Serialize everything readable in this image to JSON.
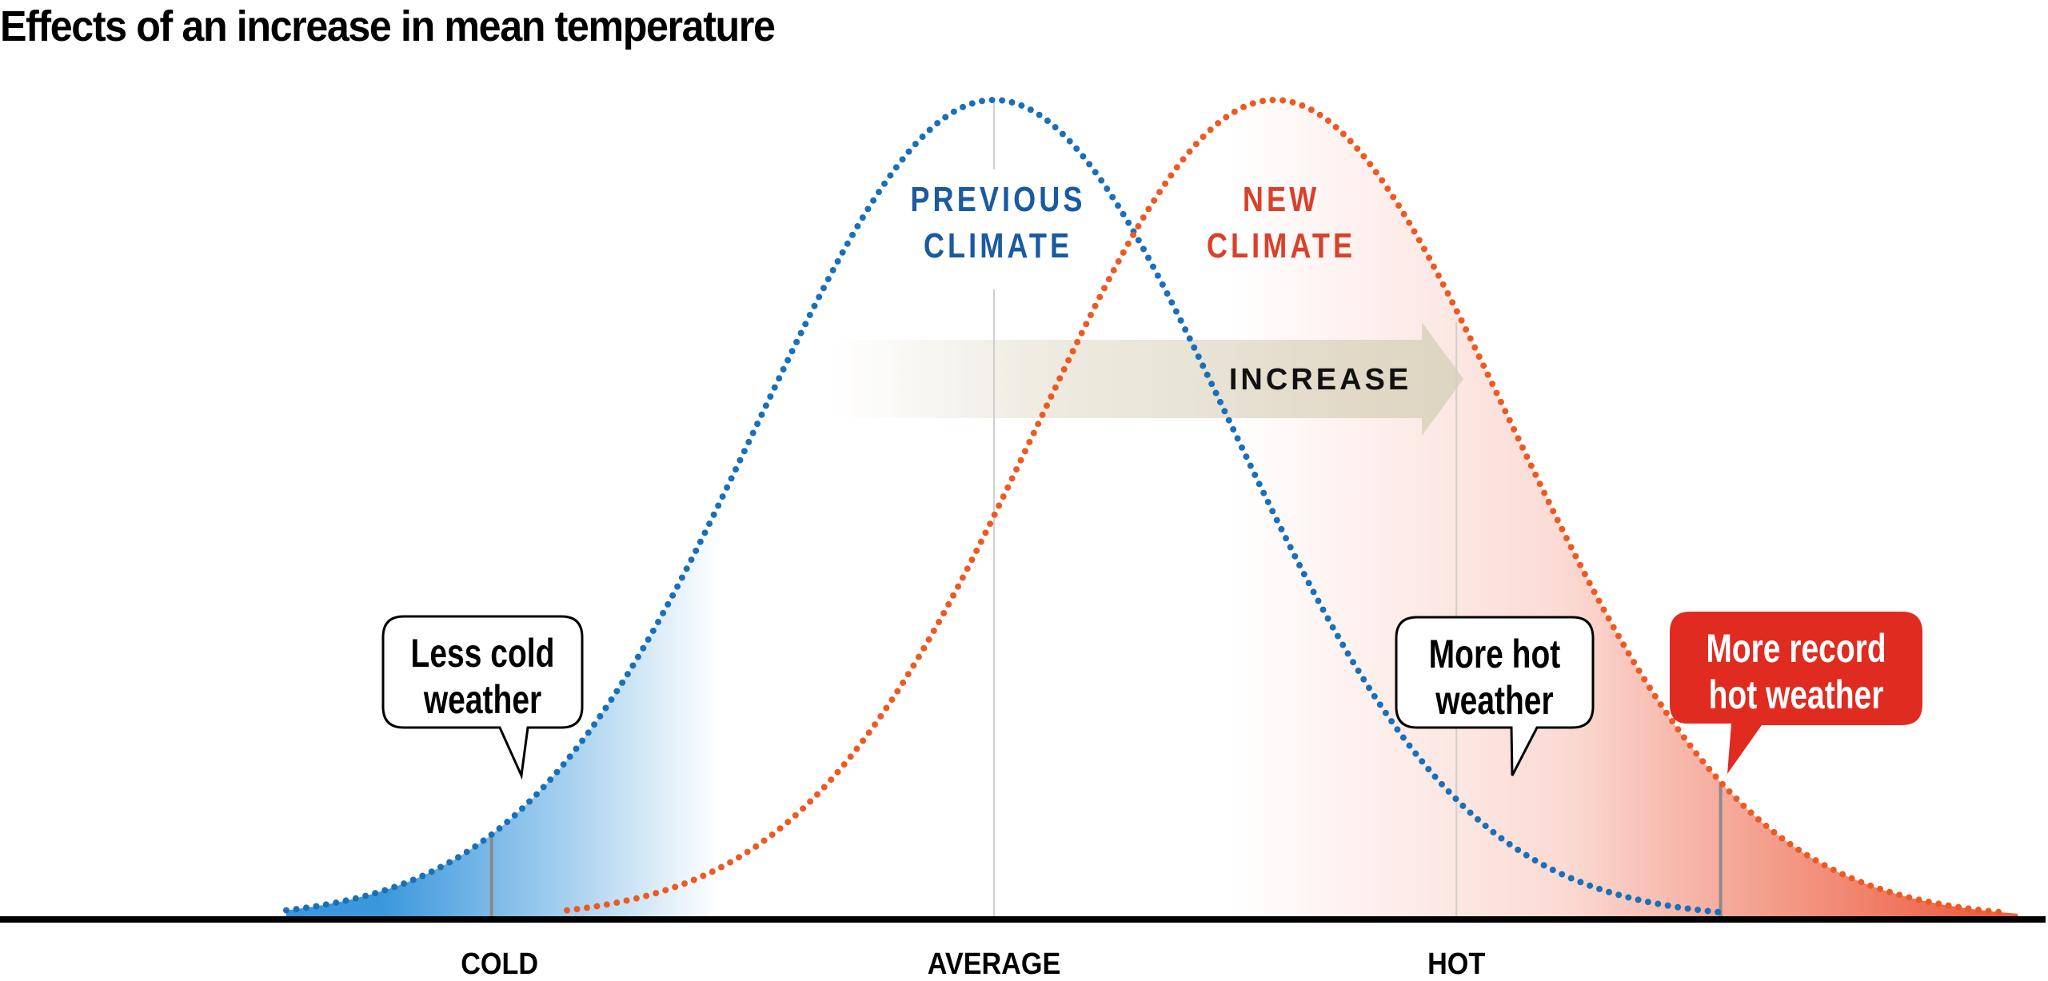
{
  "chart_data": {
    "type": "line",
    "title": "Effects of an increase in mean temperature",
    "xlabel": "",
    "ylabel": "",
    "x_units": "standard deviations of the previous climate (average = 0)",
    "xlim": [
      -3.0,
      4.35
    ],
    "tick_labels": [
      {
        "label": "COLD",
        "x": -2.13
      },
      {
        "label": "AVERAGE",
        "x": 0
      },
      {
        "label": "HOT",
        "x": 1.96
      }
    ],
    "series": [
      {
        "name": "PREVIOUS CLIMATE",
        "distribution": "normal",
        "mean": 0,
        "sd": 1,
        "color": "#1a6fb9",
        "style": "dotted"
      },
      {
        "name": "NEW CLIMATE",
        "distribution": "normal",
        "mean": 1.19,
        "sd": 1,
        "color": "#ec5a24",
        "style": "dotted"
      }
    ],
    "series_labels": [
      {
        "lines": [
          "PREVIOUS",
          "CLIMATE"
        ],
        "color": "#1a5aa0"
      },
      {
        "lines": [
          "NEW",
          "CLIMATE"
        ],
        "color": "#d8412c"
      }
    ],
    "arrow": {
      "label": "INCREASE",
      "from": -0.68,
      "to": 1.99,
      "color": "#e2dccb"
    },
    "shaded_regions": [
      {
        "name": "cold tail",
        "under": "PREVIOUS CLIMATE",
        "to": -1.5,
        "color": "#3a97dc"
      },
      {
        "name": "hot tail",
        "under": "NEW CLIMATE",
        "from": 1.0,
        "color": "#ec5a3c"
      }
    ],
    "markers": [
      {
        "name": "cold",
        "x": -2.13,
        "curve": "PREVIOUS CLIMATE"
      },
      {
        "name": "record hot",
        "x": 3.08,
        "curve": "NEW CLIMATE"
      }
    ],
    "annotations": [
      {
        "lines": [
          "Less cold",
          "weather"
        ],
        "style": "outline",
        "points_to": "cold"
      },
      {
        "lines": [
          "More hot",
          "weather"
        ],
        "style": "outline",
        "points_to": "hot"
      },
      {
        "lines": [
          "More record",
          "hot weather"
        ],
        "style": "filled",
        "color": "#e02b20",
        "points_to": "record hot"
      }
    ],
    "grid": false,
    "legend": "none"
  }
}
